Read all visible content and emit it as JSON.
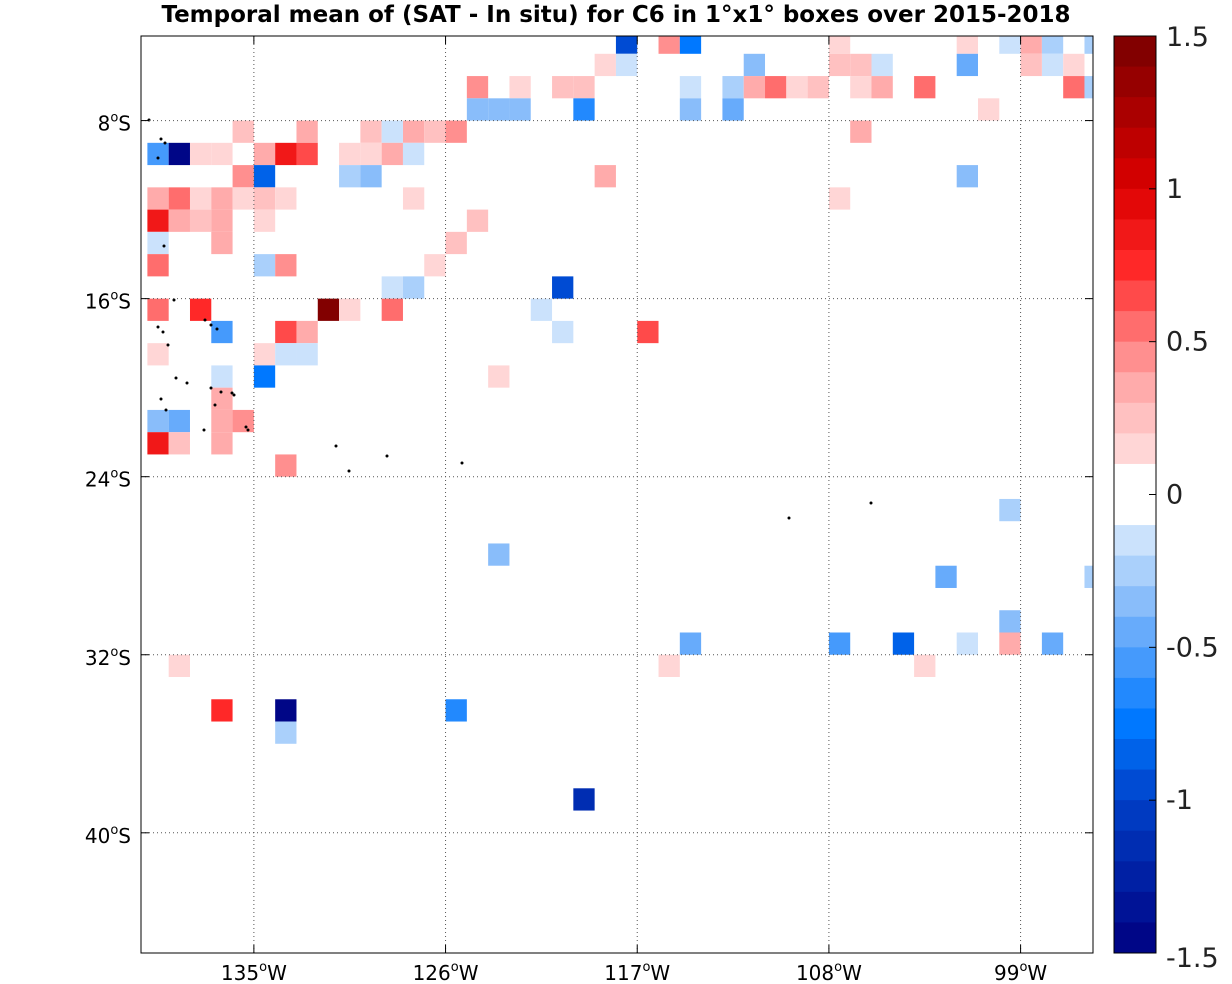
{
  "chart_data": {
    "type": "heatmap",
    "title": "Temporal mean of (SAT - In situ) for C6 in 1°x1° boxes over 2015-2018",
    "xlabel": "",
    "ylabel": "",
    "x_range_deg_W": [
      140.3,
      95.6
    ],
    "y_range_deg_S": [
      4.2,
      45.4
    ],
    "x_ticks": [
      {
        "value": 135,
        "label": "135",
        "sup": "o",
        "suffix": "W"
      },
      {
        "value": 126,
        "label": "126",
        "sup": "o",
        "suffix": "W"
      },
      {
        "value": 117,
        "label": "117",
        "sup": "o",
        "suffix": "W"
      },
      {
        "value": 108,
        "label": "108",
        "sup": "o",
        "suffix": "W"
      },
      {
        "value": 99,
        "label": "99",
        "sup": "o",
        "suffix": "W"
      }
    ],
    "y_ticks": [
      {
        "value": 8,
        "label": "8",
        "sup": "o",
        "suffix": "S"
      },
      {
        "value": 16,
        "label": "16",
        "sup": "o",
        "suffix": "S"
      },
      {
        "value": 24,
        "label": "24",
        "sup": "o",
        "suffix": "S"
      },
      {
        "value": 32,
        "label": "32",
        "sup": "o",
        "suffix": "S"
      },
      {
        "value": 40,
        "label": "40",
        "sup": "o",
        "suffix": "S"
      }
    ],
    "grid": true,
    "colorbar": {
      "min": -1.5,
      "max": 1.5,
      "tick_values": [
        1.5,
        1,
        0.5,
        0,
        -0.5,
        -1,
        -1.5
      ],
      "tick_labels": [
        "1.5",
        "1",
        "0.5",
        "0",
        "-0.5",
        "-1",
        "-1.5"
      ],
      "levels": 30,
      "placement": "right"
    },
    "cells": [
      {
        "lon": 117.5,
        "lat": 4.5,
        "value": -0.95
      },
      {
        "lon": 115.5,
        "lat": 4.5,
        "value": 0.45
      },
      {
        "lon": 114.5,
        "lat": 4.5,
        "value": -0.75
      },
      {
        "lon": 107.5,
        "lat": 4.5,
        "value": 0.1
      },
      {
        "lon": 101.5,
        "lat": 4.5,
        "value": 0.15
      },
      {
        "lon": 99.5,
        "lat": 4.5,
        "value": -0.15
      },
      {
        "lon": 98.5,
        "lat": 4.5,
        "value": 0.3
      },
      {
        "lon": 97.5,
        "lat": 4.5,
        "value": -0.25
      },
      {
        "lon": 95.5,
        "lat": 4.5,
        "value": -0.25
      },
      {
        "lon": 118.5,
        "lat": 5.5,
        "value": 0.1
      },
      {
        "lon": 117.5,
        "lat": 5.5,
        "value": -0.1
      },
      {
        "lon": 111.5,
        "lat": 5.5,
        "value": -0.3
      },
      {
        "lon": 107.5,
        "lat": 5.5,
        "value": 0.2
      },
      {
        "lon": 106.5,
        "lat": 5.5,
        "value": 0.2
      },
      {
        "lon": 105.5,
        "lat": 5.5,
        "value": -0.2
      },
      {
        "lon": 101.5,
        "lat": 5.5,
        "value": -0.45
      },
      {
        "lon": 97.5,
        "lat": 5.5,
        "value": -0.15
      },
      {
        "lon": 98.5,
        "lat": 5.5,
        "value": 0.25
      },
      {
        "lon": 96.5,
        "lat": 5.5,
        "value": 0.1
      },
      {
        "lon": 124.5,
        "lat": 6.5,
        "value": 0.45
      },
      {
        "lon": 122.5,
        "lat": 6.5,
        "value": 0.1
      },
      {
        "lon": 120.5,
        "lat": 6.5,
        "value": 0.25
      },
      {
        "lon": 119.5,
        "lat": 6.5,
        "value": 0.25
      },
      {
        "lon": 114.5,
        "lat": 6.5,
        "value": -0.2
      },
      {
        "lon": 112.5,
        "lat": 6.5,
        "value": -0.25
      },
      {
        "lon": 111.5,
        "lat": 6.5,
        "value": 0.35
      },
      {
        "lon": 110.5,
        "lat": 6.5,
        "value": 0.55
      },
      {
        "lon": 109.5,
        "lat": 6.5,
        "value": 0.1
      },
      {
        "lon": 108.5,
        "lat": 6.5,
        "value": 0.2
      },
      {
        "lon": 106.5,
        "lat": 6.5,
        "value": 0.1
      },
      {
        "lon": 105.5,
        "lat": 6.5,
        "value": 0.3
      },
      {
        "lon": 103.5,
        "lat": 6.5,
        "value": 0.55
      },
      {
        "lon": 96.5,
        "lat": 6.5,
        "value": 0.55
      },
      {
        "lon": 95.5,
        "lat": 6.5,
        "value": -0.25
      },
      {
        "lon": 124.5,
        "lat": 7.5,
        "value": -0.3
      },
      {
        "lon": 123.5,
        "lat": 7.5,
        "value": -0.3
      },
      {
        "lon": 122.5,
        "lat": 7.5,
        "value": -0.3
      },
      {
        "lon": 119.5,
        "lat": 7.5,
        "value": -0.7
      },
      {
        "lon": 114.5,
        "lat": 7.5,
        "value": -0.35
      },
      {
        "lon": 112.5,
        "lat": 7.5,
        "value": -0.45
      },
      {
        "lon": 100.5,
        "lat": 7.5,
        "value": 0.1
      },
      {
        "lon": 135.5,
        "lat": 8.5,
        "value": 0.25
      },
      {
        "lon": 132.5,
        "lat": 8.5,
        "value": 0.3
      },
      {
        "lon": 129.5,
        "lat": 8.5,
        "value": 0.25
      },
      {
        "lon": 127.5,
        "lat": 8.5,
        "value": 0.3
      },
      {
        "lon": 128.5,
        "lat": 8.5,
        "value": -0.1
      },
      {
        "lon": 126.5,
        "lat": 8.5,
        "value": 0.25
      },
      {
        "lon": 125.5,
        "lat": 8.5,
        "value": 0.45
      },
      {
        "lon": 106.5,
        "lat": 8.5,
        "value": 0.3
      },
      {
        "lon": 139.5,
        "lat": 9.5,
        "value": -0.55
      },
      {
        "lon": 138.5,
        "lat": 9.5,
        "value": -1.5
      },
      {
        "lon": 137.5,
        "lat": 9.5,
        "value": 0.1
      },
      {
        "lon": 136.5,
        "lat": 9.5,
        "value": 0.1
      },
      {
        "lon": 134.5,
        "lat": 9.5,
        "value": 0.3
      },
      {
        "lon": 133.5,
        "lat": 9.5,
        "value": 0.85
      },
      {
        "lon": 132.5,
        "lat": 9.5,
        "value": 0.6
      },
      {
        "lon": 130.5,
        "lat": 9.5,
        "value": 0.1
      },
      {
        "lon": 129.5,
        "lat": 9.5,
        "value": 0.1
      },
      {
        "lon": 128.5,
        "lat": 9.5,
        "value": 0.3
      },
      {
        "lon": 127.5,
        "lat": 9.5,
        "value": -0.2
      },
      {
        "lon": 135.5,
        "lat": 10.5,
        "value": 0.45
      },
      {
        "lon": 134.5,
        "lat": 10.5,
        "value": -0.8
      },
      {
        "lon": 130.5,
        "lat": 10.5,
        "value": -0.25
      },
      {
        "lon": 129.5,
        "lat": 10.5,
        "value": -0.35
      },
      {
        "lon": 118.5,
        "lat": 10.5,
        "value": 0.3
      },
      {
        "lon": 101.5,
        "lat": 10.5,
        "value": -0.35
      },
      {
        "lon": 139.5,
        "lat": 11.5,
        "value": 0.3
      },
      {
        "lon": 138.5,
        "lat": 11.5,
        "value": 0.55
      },
      {
        "lon": 137.5,
        "lat": 11.5,
        "value": 0.1
      },
      {
        "lon": 136.5,
        "lat": 11.5,
        "value": 0.35
      },
      {
        "lon": 135.5,
        "lat": 11.5,
        "value": 0.1
      },
      {
        "lon": 134.5,
        "lat": 11.5,
        "value": 0.25
      },
      {
        "lon": 133.5,
        "lat": 11.5,
        "value": 0.15
      },
      {
        "lon": 127.5,
        "lat": 11.5,
        "value": 0.15
      },
      {
        "lon": 107.5,
        "lat": 11.5,
        "value": 0.15
      },
      {
        "lon": 139.5,
        "lat": 12.5,
        "value": 0.85
      },
      {
        "lon": 138.5,
        "lat": 12.5,
        "value": 0.3
      },
      {
        "lon": 137.5,
        "lat": 12.5,
        "value": 0.2
      },
      {
        "lon": 136.5,
        "lat": 12.5,
        "value": 0.35
      },
      {
        "lon": 134.5,
        "lat": 12.5,
        "value": 0.1
      },
      {
        "lon": 124.5,
        "lat": 12.5,
        "value": 0.2
      },
      {
        "lon": 139.5,
        "lat": 13.5,
        "value": -0.2
      },
      {
        "lon": 136.5,
        "lat": 13.5,
        "value": 0.3
      },
      {
        "lon": 125.5,
        "lat": 13.5,
        "value": 0.2
      },
      {
        "lon": 139.5,
        "lat": 14.5,
        "value": 0.5
      },
      {
        "lon": 134.5,
        "lat": 14.5,
        "value": -0.25
      },
      {
        "lon": 133.5,
        "lat": 14.5,
        "value": 0.45
      },
      {
        "lon": 126.5,
        "lat": 14.5,
        "value": 0.15
      },
      {
        "lon": 128.5,
        "lat": 15.5,
        "value": -0.15
      },
      {
        "lon": 127.5,
        "lat": 15.5,
        "value": -0.25
      },
      {
        "lon": 120.5,
        "lat": 15.5,
        "value": -0.9
      },
      {
        "lon": 139.5,
        "lat": 16.5,
        "value": 0.55
      },
      {
        "lon": 137.5,
        "lat": 16.5,
        "value": 0.75
      },
      {
        "lon": 131.5,
        "lat": 16.5,
        "value": 1.45
      },
      {
        "lon": 130.5,
        "lat": 16.5,
        "value": 0.15
      },
      {
        "lon": 128.5,
        "lat": 16.5,
        "value": 0.5
      },
      {
        "lon": 121.5,
        "lat": 16.5,
        "value": -0.1
      },
      {
        "lon": 136.5,
        "lat": 17.5,
        "value": -0.6
      },
      {
        "lon": 133.5,
        "lat": 17.5,
        "value": 0.6
      },
      {
        "lon": 132.5,
        "lat": 17.5,
        "value": 0.3
      },
      {
        "lon": 120.5,
        "lat": 17.5,
        "value": -0.1
      },
      {
        "lon": 116.5,
        "lat": 17.5,
        "value": 0.65
      },
      {
        "lon": 139.5,
        "lat": 18.5,
        "value": 0.1
      },
      {
        "lon": 134.5,
        "lat": 18.5,
        "value": 0.1
      },
      {
        "lon": 133.5,
        "lat": 18.5,
        "value": -0.1
      },
      {
        "lon": 132.5,
        "lat": 18.5,
        "value": -0.1
      },
      {
        "lon": 136.5,
        "lat": 19.5,
        "value": -0.2
      },
      {
        "lon": 134.5,
        "lat": 19.5,
        "value": -0.75
      },
      {
        "lon": 123.5,
        "lat": 19.5,
        "value": 0.15
      },
      {
        "lon": 136.5,
        "lat": 20.5,
        "value": 0.3
      },
      {
        "lon": 139.5,
        "lat": 21.5,
        "value": -0.4
      },
      {
        "lon": 138.5,
        "lat": 21.5,
        "value": -0.5
      },
      {
        "lon": 136.5,
        "lat": 21.5,
        "value": 0.3
      },
      {
        "lon": 135.5,
        "lat": 21.5,
        "value": 0.45
      },
      {
        "lon": 139.5,
        "lat": 22.5,
        "value": 0.85
      },
      {
        "lon": 138.5,
        "lat": 22.5,
        "value": 0.25
      },
      {
        "lon": 136.5,
        "lat": 22.5,
        "value": 0.3
      },
      {
        "lon": 133.5,
        "lat": 23.5,
        "value": 0.45
      },
      {
        "lon": 99.5,
        "lat": 25.5,
        "value": -0.25
      },
      {
        "lon": 123.5,
        "lat": 27.5,
        "value": -0.35
      },
      {
        "lon": 102.5,
        "lat": 28.5,
        "value": -0.5
      },
      {
        "lon": 95.5,
        "lat": 28.5,
        "value": -0.25
      },
      {
        "lon": 99.5,
        "lat": 30.5,
        "value": -0.35
      },
      {
        "lon": 114.5,
        "lat": 31.5,
        "value": -0.45
      },
      {
        "lon": 107.5,
        "lat": 31.5,
        "value": -0.55
      },
      {
        "lon": 104.5,
        "lat": 31.5,
        "value": -0.85
      },
      {
        "lon": 101.5,
        "lat": 31.5,
        "value": -0.2
      },
      {
        "lon": 99.5,
        "lat": 31.5,
        "value": 0.3
      },
      {
        "lon": 97.5,
        "lat": 31.5,
        "value": -0.5
      },
      {
        "lon": 138.5,
        "lat": 32.5,
        "value": 0.15
      },
      {
        "lon": 115.5,
        "lat": 32.5,
        "value": 0.15
      },
      {
        "lon": 103.5,
        "lat": 32.5,
        "value": 0.15
      },
      {
        "lon": 136.5,
        "lat": 34.5,
        "value": 0.75
      },
      {
        "lon": 133.5,
        "lat": 34.5,
        "value": -1.5
      },
      {
        "lon": 125.5,
        "lat": 34.5,
        "value": -0.7
      },
      {
        "lon": 133.5,
        "lat": 35.5,
        "value": -0.25
      },
      {
        "lon": 119.5,
        "lat": 38.5,
        "value": -1.1
      }
    ]
  }
}
